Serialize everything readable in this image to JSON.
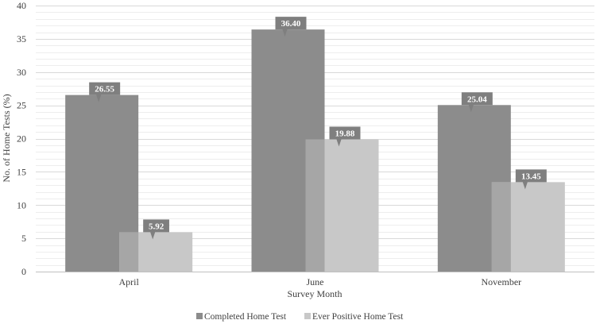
{
  "chart_data": {
    "type": "bar",
    "categories": [
      "April",
      "June",
      "November"
    ],
    "series": [
      {
        "name": "Completed Home Test",
        "values": [
          26.55,
          36.4,
          25.04
        ],
        "color": "#8c8c8c"
      },
      {
        "name": "Ever Positive Home Test",
        "values": [
          5.92,
          19.88,
          13.45
        ],
        "color": "#c8c8c8"
      }
    ],
    "data_labels": [
      [
        "26.55",
        "36.40",
        "25.04"
      ],
      [
        "5.92",
        "19.88",
        "13.45"
      ]
    ],
    "xlabel": "Survey Month",
    "ylabel": "No. of Home Tests (%)",
    "ylim": [
      0,
      40
    ],
    "yticks": [
      "0",
      "5",
      "10",
      "15",
      "20",
      "25",
      "30",
      "35",
      "40"
    ],
    "grid": true,
    "legend_position": "bottom",
    "label_box_color": "#7f7f7f",
    "overlap_color": "#a6a6a6"
  }
}
